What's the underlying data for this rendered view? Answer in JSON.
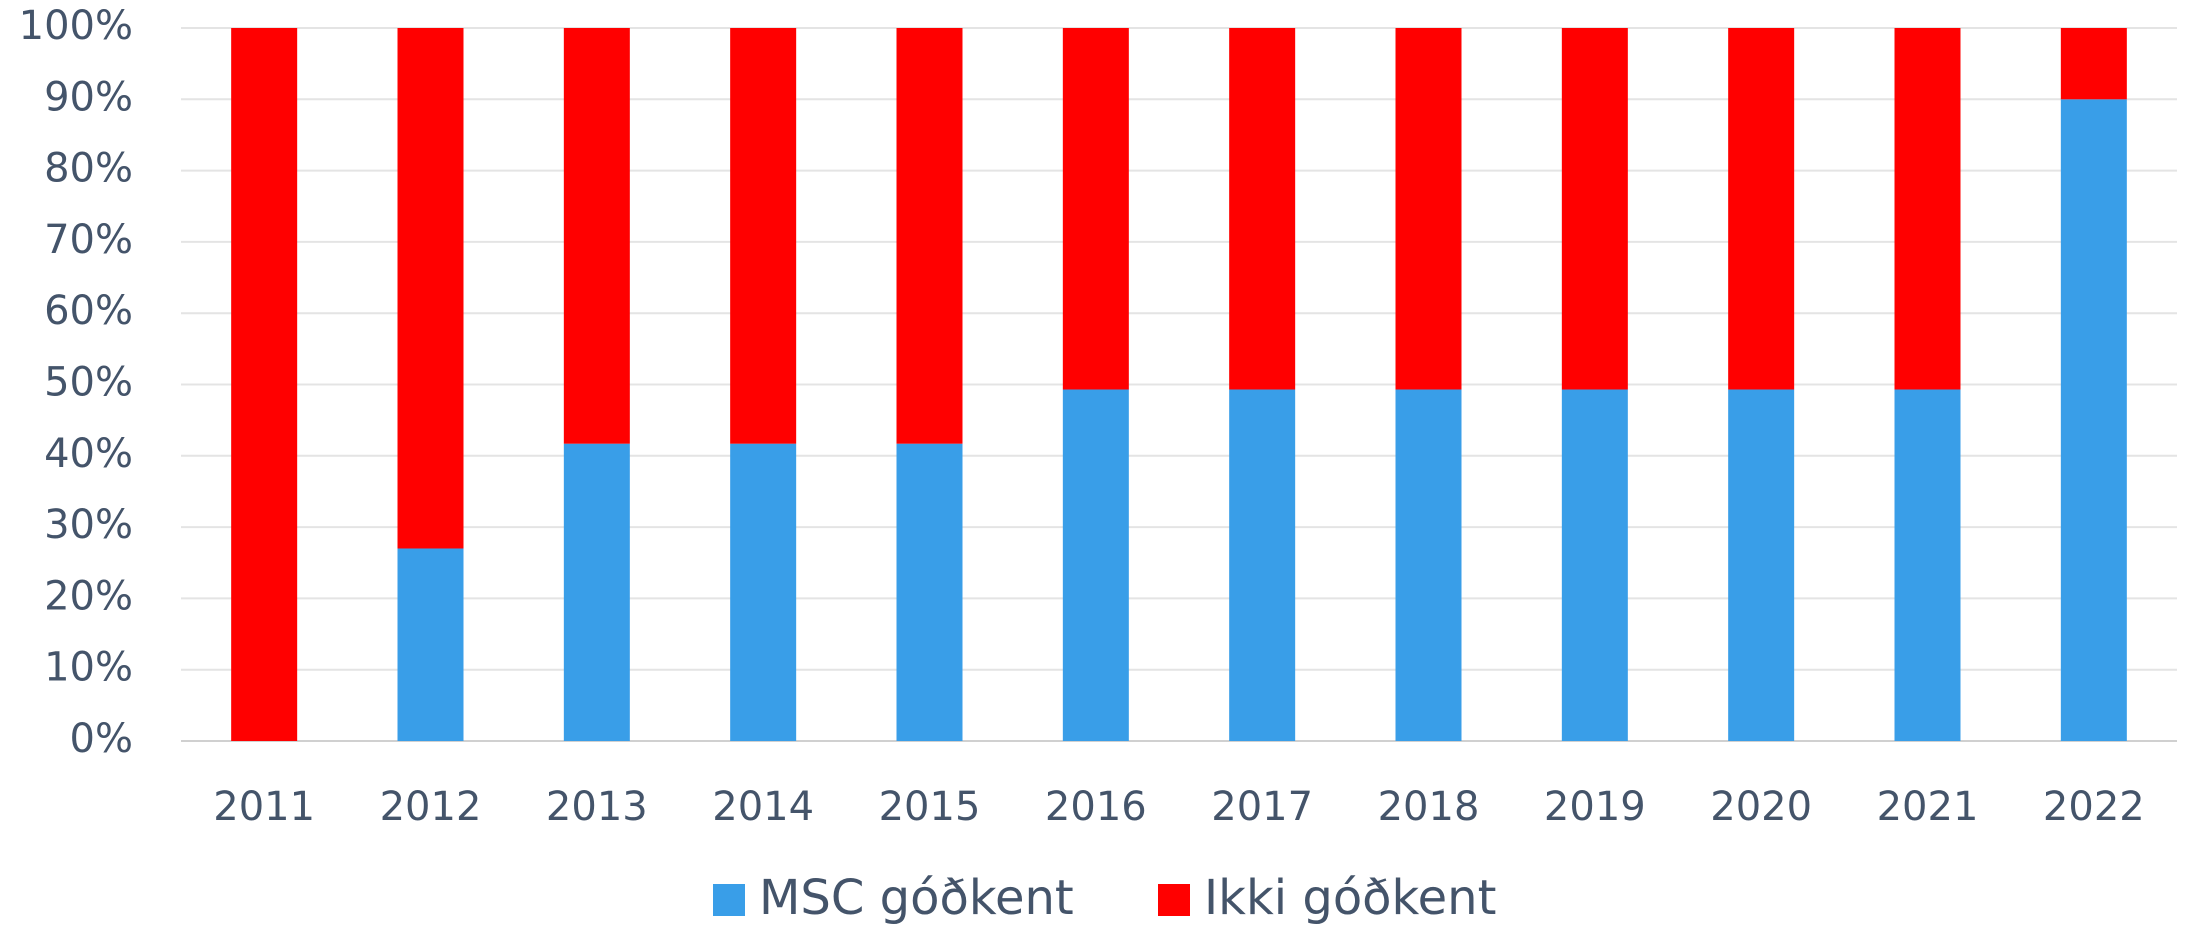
{
  "chart_data": {
    "type": "stacked_bar",
    "categories": [
      "2011",
      "2012",
      "2013",
      "2014",
      "2015",
      "2016",
      "2017",
      "2018",
      "2019",
      "2020",
      "2021",
      "2022"
    ],
    "series": [
      {
        "name": "MSC góðkent",
        "color": "#399ee8",
        "values": [
          0,
          27,
          41.7,
          41.7,
          41.7,
          49.3,
          49.3,
          49.3,
          49.3,
          49.3,
          49.3,
          90
        ]
      },
      {
        "name": "Ikki góðkent",
        "color": "#ff0000",
        "values": [
          100,
          73,
          58.3,
          58.3,
          58.3,
          50.7,
          50.7,
          50.7,
          50.7,
          50.7,
          50.7,
          10
        ]
      }
    ],
    "ylim": [
      0,
      100
    ],
    "yticks": [
      {
        "value": 0,
        "label": "0%"
      },
      {
        "value": 10,
        "label": "10%"
      },
      {
        "value": 20,
        "label": "20%"
      },
      {
        "value": 30,
        "label": "30%"
      },
      {
        "value": 40,
        "label": "40%"
      },
      {
        "value": 50,
        "label": "50%"
      },
      {
        "value": 60,
        "label": "60%"
      },
      {
        "value": 70,
        "label": "70%"
      },
      {
        "value": 80,
        "label": "80%"
      },
      {
        "value": 90,
        "label": "90%"
      },
      {
        "value": 100,
        "label": "100%"
      }
    ],
    "grid": true,
    "legend": "bottom"
  }
}
